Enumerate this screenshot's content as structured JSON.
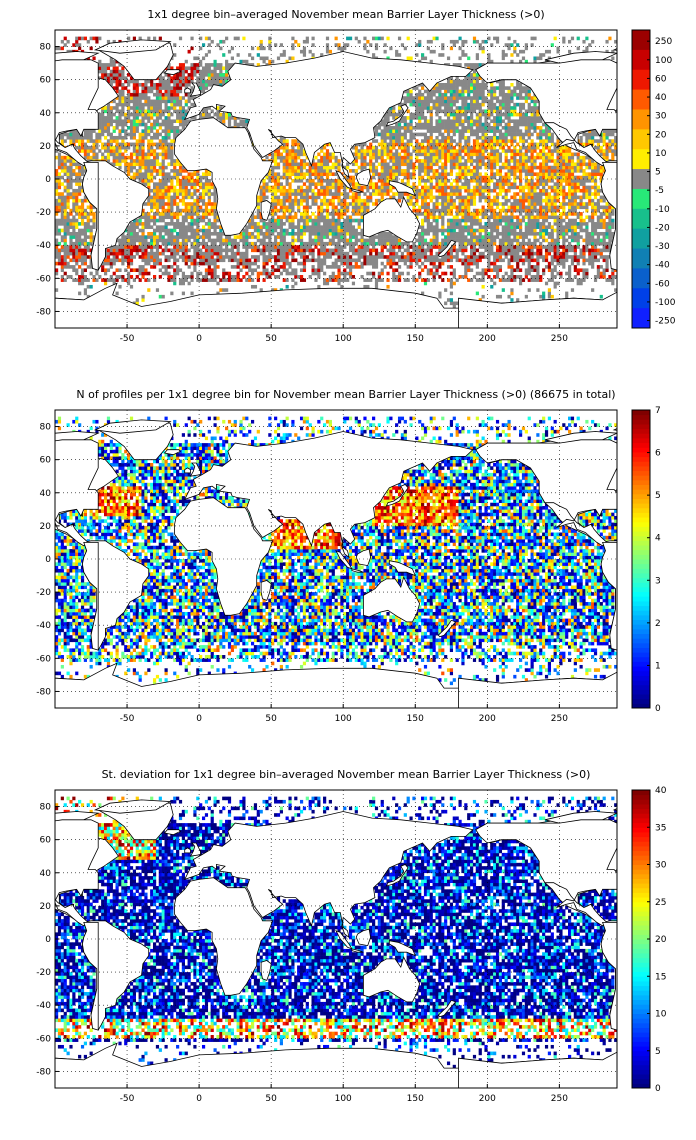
{
  "chart_data": [
    {
      "type": "heatmap",
      "title": "1x1 degree bin–averaged November mean Barrier Layer Thickness (>0)",
      "xlabel": "",
      "ylabel": "",
      "xlim": [
        -100,
        290
      ],
      "ylim": [
        -90,
        90
      ],
      "xticks": [
        -50,
        0,
        50,
        100,
        150,
        200,
        250
      ],
      "yticks": [
        80,
        60,
        40,
        20,
        0,
        -20,
        -40,
        -60,
        -80
      ],
      "grid": true,
      "colorbar": {
        "kind": "categorical",
        "labels": [
          "250",
          "100",
          "60",
          "40",
          "30",
          "20",
          "10",
          "5",
          "-5",
          "-10",
          "-20",
          "-30",
          "-40",
          "-60",
          "-100",
          "-250"
        ],
        "colors": [
          "#9b0000",
          "#c80000",
          "#ee1800",
          "#ff5a00",
          "#ff9400",
          "#ffc800",
          "#ffee00",
          "#888888",
          "#28e878",
          "#18c08c",
          "#10a0a0",
          "#1080b4",
          "#0a60cc",
          "#0040e8",
          "#1020ff"
        ],
        "gray_band": 7
      },
      "colormap": "bin-categorical",
      "seed": 11
    },
    {
      "type": "heatmap",
      "title": "N of profiles per 1x1 degree bin for November mean Barrier Layer Thickness (>0) (86675 in total)",
      "xlabel": "",
      "ylabel": "",
      "xlim": [
        -100,
        290
      ],
      "ylim": [
        -90,
        90
      ],
      "xticks": [
        -50,
        0,
        50,
        100,
        150,
        200,
        250
      ],
      "yticks": [
        80,
        60,
        40,
        20,
        0,
        -20,
        -40,
        -60,
        -80
      ],
      "grid": true,
      "total_profiles": 86675,
      "colorbar": {
        "kind": "continuous",
        "min": 0,
        "max": 7,
        "ticks": [
          0,
          1,
          2,
          3,
          4,
          5,
          6,
          7
        ]
      },
      "colormap": "jet",
      "seed": 23
    },
    {
      "type": "heatmap",
      "title": "St. deviation for 1x1 degree bin–averaged November mean Barrier Layer Thickness (>0)",
      "xlabel": "",
      "ylabel": "",
      "xlim": [
        -100,
        290
      ],
      "ylim": [
        -90,
        90
      ],
      "xticks": [
        -50,
        0,
        50,
        100,
        150,
        200,
        250
      ],
      "yticks": [
        80,
        60,
        40,
        20,
        0,
        -20,
        -40,
        -60,
        -80
      ],
      "grid": true,
      "colorbar": {
        "kind": "continuous",
        "min": 0,
        "max": 40,
        "ticks": [
          0,
          5,
          10,
          15,
          20,
          25,
          30,
          35,
          40
        ]
      },
      "colormap": "jet",
      "seed": 37
    }
  ]
}
